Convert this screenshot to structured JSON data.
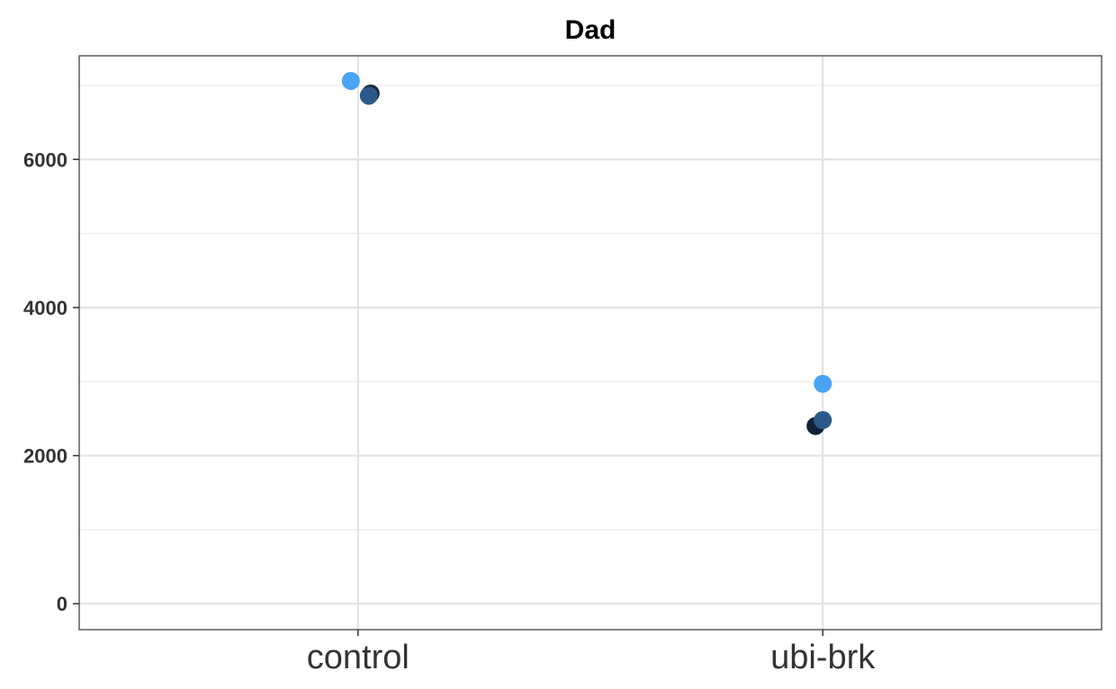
{
  "chart_data": {
    "type": "scatter",
    "title": "Dad",
    "xlabel": "",
    "ylabel": "",
    "categories": [
      "control",
      "ubi-brk"
    ],
    "y_ticks": [
      "0",
      "2000",
      "4000",
      "6000"
    ],
    "ylim": [
      -350,
      7400
    ],
    "grid": true,
    "legend": "none",
    "points": [
      {
        "category": "control",
        "y": 7060,
        "color": "#4aa3f5"
      },
      {
        "category": "control",
        "y": 6890,
        "color": "#1a2b40"
      },
      {
        "category": "control",
        "y": 6860,
        "color": "#2b5a8a"
      },
      {
        "category": "ubi-brk",
        "y": 2970,
        "color": "#4aa3f5"
      },
      {
        "category": "ubi-brk",
        "y": 2400,
        "color": "#10223a"
      },
      {
        "category": "ubi-brk",
        "y": 2480,
        "color": "#2b5a8a"
      }
    ]
  }
}
